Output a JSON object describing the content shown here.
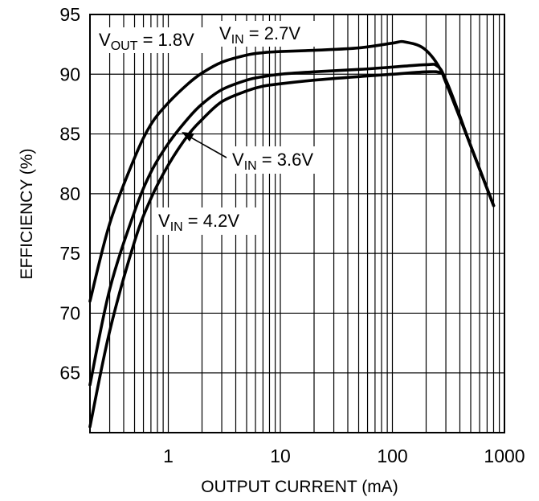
{
  "chart_data": {
    "type": "line",
    "title": "",
    "xlabel": "OUTPUT CURRENT (mA)",
    "ylabel": "EFFICIENCY (%)",
    "x_scale": "log",
    "xlim": [
      0.2,
      1000
    ],
    "ylim": [
      60,
      95
    ],
    "x_ticks": [
      1,
      10,
      100,
      1000
    ],
    "x_tick_labels": [
      "1",
      "10",
      "100",
      "1000"
    ],
    "y_ticks": [
      65,
      70,
      75,
      80,
      85,
      90,
      95
    ],
    "y_tick_labels": [
      "65",
      "70",
      "75",
      "80",
      "85",
      "90",
      "95"
    ],
    "grid": true,
    "series": [
      {
        "name": "VIN = 2.7V",
        "label_main": "V",
        "label_sub": "IN",
        "label_rest": " = 2.7V",
        "x": [
          0.2,
          0.3,
          0.5,
          0.7,
          1,
          1.5,
          2,
          3,
          5,
          7,
          10,
          20,
          50,
          100,
          130,
          200,
          300,
          500,
          800
        ],
        "y": [
          71,
          77.5,
          83,
          85.8,
          87.6,
          89.2,
          90.1,
          91,
          91.6,
          91.8,
          91.9,
          92,
          92.2,
          92.6,
          92.7,
          92,
          89.5,
          84,
          79
        ]
      },
      {
        "name": "VIN = 3.6V",
        "label_main": "V",
        "label_sub": "IN",
        "label_rest": " = 3.6V",
        "x": [
          0.2,
          0.3,
          0.5,
          0.7,
          1,
          1.5,
          2,
          3,
          5,
          7,
          10,
          20,
          50,
          100,
          200,
          250,
          300,
          500,
          800
        ],
        "y": [
          64,
          72,
          78.5,
          81.8,
          84.2,
          86.3,
          87.5,
          88.7,
          89.5,
          89.8,
          90,
          90.2,
          90.4,
          90.6,
          90.8,
          90.7,
          89.5,
          84,
          79
        ]
      },
      {
        "name": "VIN = 4.2V",
        "label_main": "V",
        "label_sub": "IN",
        "label_rest": " = 4.2V",
        "x": [
          0.2,
          0.3,
          0.5,
          0.7,
          1,
          1.5,
          2,
          3,
          5,
          7,
          10,
          20,
          50,
          100,
          200,
          270,
          300,
          500,
          800
        ],
        "y": [
          60.5,
          68.5,
          76,
          79.6,
          82.4,
          84.9,
          86.2,
          87.7,
          88.6,
          89,
          89.2,
          89.5,
          89.8,
          90,
          90.2,
          90.1,
          89.3,
          84,
          79
        ]
      }
    ],
    "annotations": [
      {
        "main": "V",
        "sub": "OUT",
        "rest": " = 1.8V"
      }
    ]
  }
}
